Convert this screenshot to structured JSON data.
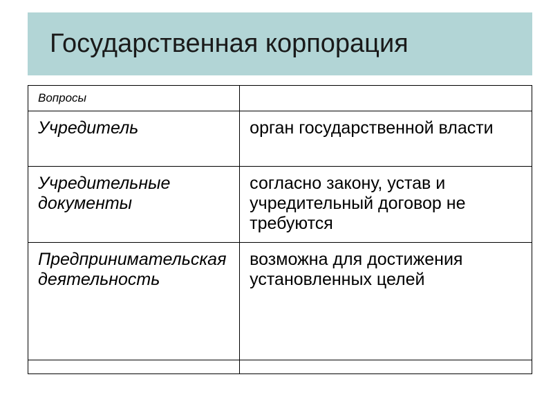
{
  "slide": {
    "title": "Государственная корпорация",
    "title_bg_color": "#b2d5d6",
    "title_fontsize": 38,
    "background_color": "#ffffff"
  },
  "table": {
    "type": "table",
    "border_color": "#000000",
    "columns": [
      {
        "key": "question",
        "width_pct": 42,
        "font_style": "italic"
      },
      {
        "key": "answer",
        "width_pct": 58,
        "font_style": "normal"
      }
    ],
    "header": {
      "label": "Вопросы",
      "value": "",
      "fontsize": 17,
      "font_style": "italic"
    },
    "rows": [
      {
        "label": "Учредитель",
        "value": "орган государственной власти"
      },
      {
        "label": "Учредительные документы",
        "value": "согласно закону, устав и учредительный договор не требуются"
      },
      {
        "label": "Предпринимательская деятельность",
        "value": "возможна для достижения установленных целей"
      },
      {
        "label": "",
        "value": ""
      }
    ],
    "cell_fontsize": 25
  }
}
